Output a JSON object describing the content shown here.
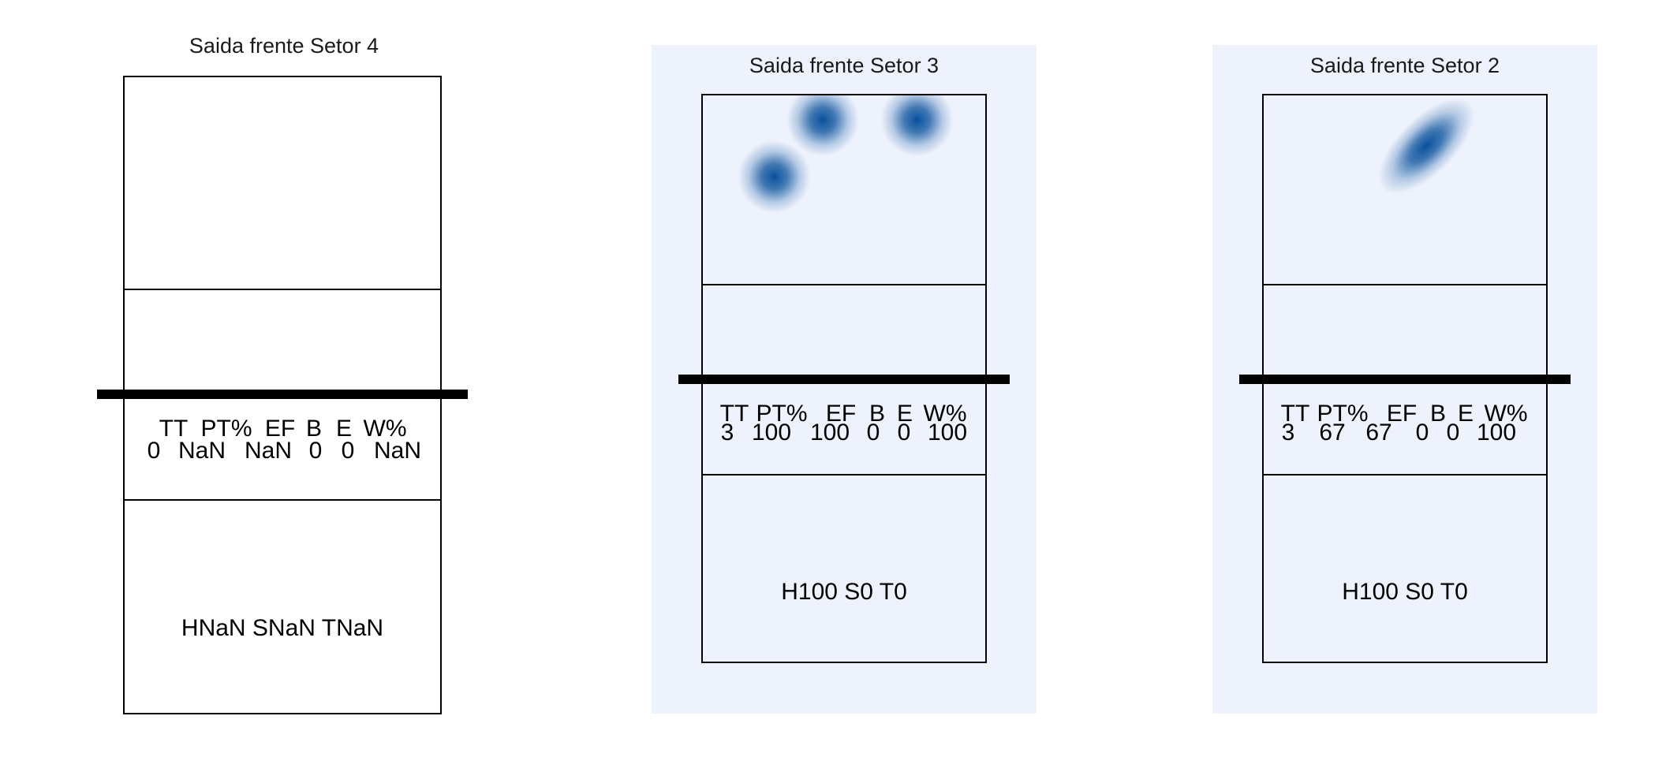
{
  "chart_data": [
    {
      "type": "heatmap",
      "title": "Saida frente Setor 4",
      "stat_headers": [
        "TT",
        "PT%",
        "EF",
        "B",
        "E",
        "W%"
      ],
      "stat_values": [
        "0",
        "NaN",
        "NaN",
        "0",
        "0",
        "NaN"
      ],
      "summary": "HNaN SNaN TNaN",
      "has_density": false,
      "density_points": []
    },
    {
      "type": "heatmap",
      "title": "Saida frente Setor 3",
      "stat_headers": [
        "TT",
        "PT%",
        "EF",
        "B",
        "E",
        "W%"
      ],
      "stat_values": [
        "3",
        "100",
        "100",
        "0",
        "0",
        "100"
      ],
      "summary": "H100 S0 T0",
      "has_density": true,
      "density_points": [
        {
          "x": 0.42,
          "y": 0.87
        },
        {
          "x": 0.75,
          "y": 0.87
        },
        {
          "x": 0.25,
          "y": 0.57
        }
      ]
    },
    {
      "type": "heatmap",
      "title": "Saida frente Setor 2",
      "stat_headers": [
        "TT",
        "PT%",
        "EF",
        "B",
        "E",
        "W%"
      ],
      "stat_values": [
        "3",
        "67",
        "67",
        "0",
        "0",
        "100"
      ],
      "summary": "H100 S0 T0",
      "has_density": true,
      "density_points": [
        {
          "x": 0.54,
          "y": 0.7
        },
        {
          "x": 0.62,
          "y": 0.78
        },
        {
          "x": 0.55,
          "y": 0.72
        }
      ]
    }
  ],
  "colors": {
    "panel_background": "#eef2fc",
    "heat_low": "#eef2fc",
    "heat_high": "#08519c",
    "lines": "#000000"
  }
}
